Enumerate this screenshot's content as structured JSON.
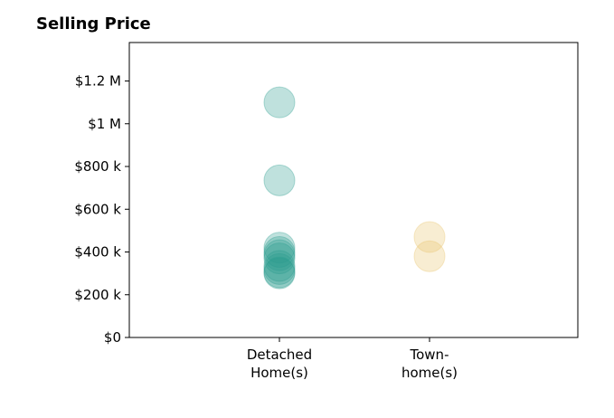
{
  "chart_data": {
    "type": "scatter",
    "title": "Selling Price",
    "categories": [
      [
        "Detached",
        "Home(s)"
      ],
      [
        "Town-",
        "home(s)"
      ]
    ],
    "yticks": [
      0,
      200000,
      400000,
      600000,
      800000,
      1000000,
      1200000
    ],
    "ytick_labels": [
      "$0",
      "$200 k",
      "$400 k",
      "$600 k",
      "$800 k",
      "$1 M",
      "$1.2 M"
    ],
    "ylim": [
      0,
      1380000
    ],
    "grid": false,
    "series": [
      {
        "category_index": 0,
        "color": "#2a9d8f",
        "values": [
          1100000,
          735000,
          420000,
          400000,
          385000,
          370000,
          335000,
          320000,
          305000,
          300000
        ]
      },
      {
        "category_index": 1,
        "color": "#e9c46a",
        "values": [
          470000,
          380000
        ]
      }
    ]
  }
}
